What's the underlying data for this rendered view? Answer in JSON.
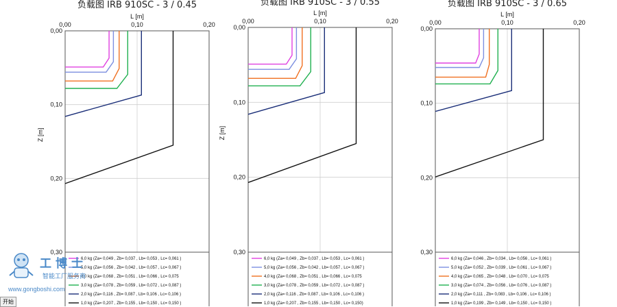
{
  "chart_data": [
    {
      "type": "line",
      "title": "负载图 IRB 910SC - 3 / 0.45",
      "xlabel": "L [m]",
      "ylabel": "Z [m]",
      "xlim": [
        0,
        0.2
      ],
      "ylim": [
        0,
        0.3
      ],
      "x_ticks": [
        "0,00",
        "0,10",
        "0,20"
      ],
      "y_ticks": [
        "0,00",
        "0,10",
        "0,20",
        "0,30"
      ],
      "grid": true,
      "legend_position": "bottom",
      "series": [
        {
          "name": "6,0 kg (Za= 0,049 , Zb= 0,037 , Lb= 0,053 , Lc= 0,061 )",
          "color": "#e040e0",
          "values": [
            {
              "x": 0.061,
              "y": 0
            },
            {
              "x": 0.061,
              "y": 0.037
            },
            {
              "x": 0.053,
              "y": 0.049
            },
            {
              "x": 0,
              "y": 0.049
            }
          ]
        },
        {
          "name": "5,0 kg (Za= 0,056 , Zb= 0,042 , Lb= 0,057 , Lc= 0,067 )",
          "color": "#7c8fe0",
          "values": [
            {
              "x": 0.067,
              "y": 0
            },
            {
              "x": 0.067,
              "y": 0.042
            },
            {
              "x": 0.057,
              "y": 0.056
            },
            {
              "x": 0,
              "y": 0.056
            }
          ]
        },
        {
          "name": "4,0 kg (Za= 0,068 , Zb= 0,051 , Lb= 0,066 , Lc= 0,075",
          "color": "#f07020",
          "values": [
            {
              "x": 0.075,
              "y": 0
            },
            {
              "x": 0.075,
              "y": 0.051
            },
            {
              "x": 0.066,
              "y": 0.068
            },
            {
              "x": 0,
              "y": 0.068
            }
          ]
        },
        {
          "name": "3,0 kg (Za= 0,078 , Zb= 0,059 , Lb= 0,072 , Lc= 0,087 )",
          "color": "#20b050",
          "values": [
            {
              "x": 0.087,
              "y": 0
            },
            {
              "x": 0.087,
              "y": 0.059
            },
            {
              "x": 0.072,
              "y": 0.078
            },
            {
              "x": 0,
              "y": 0.078
            }
          ]
        },
        {
          "name": "2,0 kg (Za= 0,116 , Zb= 0,087 , Lb= 0,106 , Lc= 0,106 )",
          "color": "#1a2e78",
          "values": [
            {
              "x": 0.106,
              "y": 0
            },
            {
              "x": 0.106,
              "y": 0.087
            },
            {
              "x": 0.106,
              "y": 0.087
            },
            {
              "x": 0,
              "y": 0.116
            }
          ]
        },
        {
          "name": "1,0 kg (Za= 0,207 , Zb= 0,155 , Lb= 0,150 , Lc= 0,150 )",
          "color": "#111111",
          "values": [
            {
              "x": 0.15,
              "y": 0
            },
            {
              "x": 0.15,
              "y": 0.155
            },
            {
              "x": 0.15,
              "y": 0.155
            },
            {
              "x": 0,
              "y": 0.207
            }
          ]
        }
      ]
    },
    {
      "type": "line",
      "title": "负载图 IRB 910SC - 3 / 0.55",
      "xlabel": "L [m]",
      "ylabel": "Z [m]",
      "xlim": [
        0,
        0.2
      ],
      "ylim": [
        0,
        0.3
      ],
      "x_ticks": [
        "0,00",
        "0,10",
        "0,20"
      ],
      "y_ticks": [
        "0,00",
        "0,10",
        "0,20",
        "0,30"
      ],
      "grid": true,
      "legend_position": "bottom",
      "series": [
        {
          "name": "6,0 kg (Za= 0,049 , Zb= 0,037 , Lb= 0,053 , Lc= 0,061 )",
          "color": "#e040e0",
          "values": [
            {
              "x": 0.061,
              "y": 0
            },
            {
              "x": 0.061,
              "y": 0.037
            },
            {
              "x": 0.053,
              "y": 0.049
            },
            {
              "x": 0,
              "y": 0.049
            }
          ]
        },
        {
          "name": "5,0 kg (Za= 0,056 , Zb= 0,042 , Lb= 0,057 , Lc= 0,067 )",
          "color": "#7c8fe0",
          "values": [
            {
              "x": 0.067,
              "y": 0
            },
            {
              "x": 0.067,
              "y": 0.042
            },
            {
              "x": 0.057,
              "y": 0.056
            },
            {
              "x": 0,
              "y": 0.056
            }
          ]
        },
        {
          "name": "4,0 kg (Za= 0,068 , Zb= 0,051 , Lb= 0,066 , Lc= 0,075",
          "color": "#f07020",
          "values": [
            {
              "x": 0.075,
              "y": 0
            },
            {
              "x": 0.075,
              "y": 0.051
            },
            {
              "x": 0.066,
              "y": 0.068
            },
            {
              "x": 0,
              "y": 0.068
            }
          ]
        },
        {
          "name": "3,0 kg (Za= 0,078 , Zb= 0,059 , Lb= 0,072 , Lc= 0,087 )",
          "color": "#20b050",
          "values": [
            {
              "x": 0.087,
              "y": 0
            },
            {
              "x": 0.087,
              "y": 0.059
            },
            {
              "x": 0.072,
              "y": 0.078
            },
            {
              "x": 0,
              "y": 0.078
            }
          ]
        },
        {
          "name": "2,0 kg (Za= 0,116 , Zb= 0,087 , Lb= 0,106 , Lc= 0,106 )",
          "color": "#1a2e78",
          "values": [
            {
              "x": 0.106,
              "y": 0
            },
            {
              "x": 0.106,
              "y": 0.087
            },
            {
              "x": 0.106,
              "y": 0.087
            },
            {
              "x": 0,
              "y": 0.116
            }
          ]
        },
        {
          "name": "1,0 kg (Za= 0,207 , Zb= 0,155 , Lb= 0,150 , Lc= 0,150)",
          "color": "#111111",
          "values": [
            {
              "x": 0.15,
              "y": 0
            },
            {
              "x": 0.15,
              "y": 0.155
            },
            {
              "x": 0.15,
              "y": 0.155
            },
            {
              "x": 0,
              "y": 0.207
            }
          ]
        }
      ]
    },
    {
      "type": "line",
      "title": "负载图 IRB 910SC - 3 / 0.65",
      "xlabel": "L [m]",
      "ylabel": "Z [m]",
      "xlim": [
        0,
        0.2
      ],
      "ylim": [
        0,
        0.3
      ],
      "x_ticks": [
        "0,00",
        "0,10",
        "0,20"
      ],
      "y_ticks": [
        "0,00",
        "0,10",
        "0,20",
        "0,30"
      ],
      "grid": true,
      "legend_position": "bottom",
      "series": [
        {
          "name": "6,0 kg (Za= 0,046 , Zb= 0,034 , Lb= 0,056 , Lc= 0,061 )",
          "color": "#e040e0",
          "values": [
            {
              "x": 0.061,
              "y": 0
            },
            {
              "x": 0.061,
              "y": 0.034
            },
            {
              "x": 0.056,
              "y": 0.046
            },
            {
              "x": 0,
              "y": 0.046
            }
          ]
        },
        {
          "name": "5,0 kg (Za= 0,052 , Zb= 0,039 , Lb= 0,061 , Lc= 0,067 )",
          "color": "#7c8fe0",
          "values": [
            {
              "x": 0.067,
              "y": 0
            },
            {
              "x": 0.067,
              "y": 0.039
            },
            {
              "x": 0.061,
              "y": 0.052
            },
            {
              "x": 0,
              "y": 0.052
            }
          ]
        },
        {
          "name": "4,0 kg (Za= 0,065 , Zb= 0,048 , Lb= 0,070 , Lc= 0,075",
          "color": "#f07020",
          "values": [
            {
              "x": 0.075,
              "y": 0
            },
            {
              "x": 0.075,
              "y": 0.048
            },
            {
              "x": 0.07,
              "y": 0.065
            },
            {
              "x": 0,
              "y": 0.065
            }
          ]
        },
        {
          "name": "3,0 kg (Za= 0,074 , Zb= 0,056 , Lb= 0,076 , Lc= 0,087 )",
          "color": "#20b050",
          "values": [
            {
              "x": 0.087,
              "y": 0
            },
            {
              "x": 0.087,
              "y": 0.056
            },
            {
              "x": 0.076,
              "y": 0.074
            },
            {
              "x": 0,
              "y": 0.074
            }
          ]
        },
        {
          "name": "2,0 kg (Za= 0,111 , Zb= 0,083 , Lb= 0,106 , Lc= 0,106 )",
          "color": "#1a2e78",
          "values": [
            {
              "x": 0.106,
              "y": 0
            },
            {
              "x": 0.106,
              "y": 0.083
            },
            {
              "x": 0.106,
              "y": 0.083
            },
            {
              "x": 0,
              "y": 0.111
            }
          ]
        },
        {
          "name": "1,0 kg (Za= 0,199 , Zb= 0,149 , Lb= 0,150 , Lc= 0,150 )",
          "color": "#111111",
          "values": [
            {
              "x": 0.15,
              "y": 0
            },
            {
              "x": 0.15,
              "y": 0.149
            },
            {
              "x": 0.15,
              "y": 0.149
            },
            {
              "x": 0,
              "y": 0.199
            }
          ]
        }
      ]
    }
  ],
  "watermark": {
    "title": "工博士",
    "subtitle": "智能工厂服务商",
    "url": "www.gongboshi.com"
  },
  "taskbar": {
    "start_label": "开始"
  }
}
